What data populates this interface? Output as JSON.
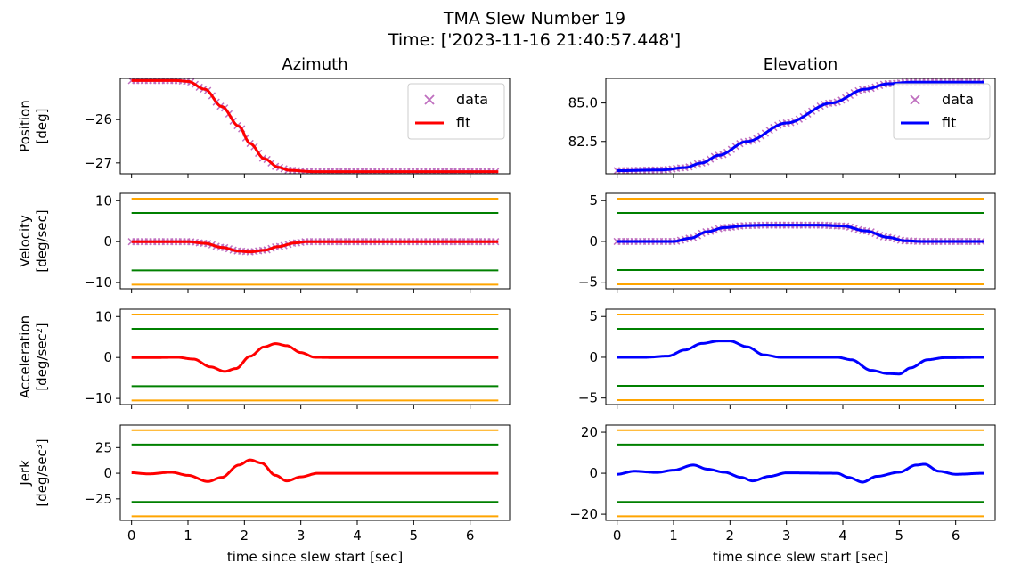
{
  "title": "TMA Slew Number 19",
  "subtitle": "Time: ['2023-11-16 21:40:57.448']",
  "colors": {
    "data": "#bf6fbf",
    "fit_az": "#ff0000",
    "fit_el": "#0000ff",
    "limit_outer": "#ffa500",
    "limit_inner": "#008000"
  },
  "chart_data": [
    {
      "type": "line",
      "panel": "az_position",
      "column_title": "Azimuth",
      "ylabel": [
        "Position",
        "[deg]"
      ],
      "xlim": [
        -0.2,
        6.7
      ],
      "ylim": [
        -27.25,
        -25.05
      ],
      "yticks": [
        -26,
        -27
      ],
      "legend": {
        "placement": "upper-right",
        "entries": [
          "data",
          "fit"
        ]
      },
      "series": [
        {
          "name": "data",
          "style": "x-markers",
          "profile": "az_pos"
        },
        {
          "name": "fit",
          "style": "line",
          "profile": "az_pos"
        }
      ],
      "limits": []
    },
    {
      "type": "line",
      "panel": "el_position",
      "column_title": "Elevation",
      "ylabel": [],
      "xlim": [
        -0.2,
        6.7
      ],
      "ylim": [
        80.4,
        86.6
      ],
      "yticks": [
        85.0,
        82.5
      ],
      "ytick_labels": [
        "85.0",
        "82.5"
      ],
      "legend": {
        "placement": "upper-right",
        "entries": [
          "data",
          "fit"
        ]
      },
      "series": [
        {
          "name": "data",
          "style": "x-markers",
          "profile": "el_pos"
        },
        {
          "name": "fit",
          "style": "line",
          "profile": "el_pos"
        }
      ],
      "limits": []
    },
    {
      "type": "line",
      "panel": "az_velocity",
      "ylabel": [
        "Velocity",
        "[deg/sec]"
      ],
      "xlim": [
        -0.2,
        6.7
      ],
      "ylim": [
        -11.5,
        11.8
      ],
      "yticks": [
        10,
        0,
        -10
      ],
      "series": [
        {
          "style": "x-markers",
          "profile": "az_vel"
        },
        {
          "style": "line",
          "profile": "az_vel"
        }
      ],
      "limits": [
        10.5,
        7.0,
        -7.0,
        -10.5
      ]
    },
    {
      "type": "line",
      "panel": "el_velocity",
      "ylabel": [],
      "xlim": [
        -0.2,
        6.7
      ],
      "ylim": [
        -5.8,
        5.9
      ],
      "yticks": [
        5,
        0,
        -5
      ],
      "series": [
        {
          "style": "x-markers",
          "profile": "el_vel"
        },
        {
          "style": "line",
          "profile": "el_vel"
        }
      ],
      "limits": [
        5.25,
        3.5,
        -3.5,
        -5.25
      ]
    },
    {
      "type": "line",
      "panel": "az_acceleration",
      "ylabel": [
        "Acceleration",
        "[deg/sec²]"
      ],
      "xlim": [
        -0.2,
        6.7
      ],
      "ylim": [
        -11.5,
        11.8
      ],
      "yticks": [
        10,
        0,
        -10
      ],
      "series": [
        {
          "style": "line",
          "profile": "az_acc"
        }
      ],
      "limits": [
        10.5,
        7.0,
        -7.0,
        -10.5
      ]
    },
    {
      "type": "line",
      "panel": "el_acceleration",
      "ylabel": [],
      "xlim": [
        -0.2,
        6.7
      ],
      "ylim": [
        -5.8,
        5.9
      ],
      "yticks": [
        5,
        0,
        -5
      ],
      "series": [
        {
          "style": "line",
          "profile": "el_acc"
        }
      ],
      "limits": [
        5.25,
        3.5,
        -3.5,
        -5.25
      ]
    },
    {
      "type": "line",
      "panel": "az_jerk",
      "ylabel": [
        "Jerk",
        "[deg/sec³]"
      ],
      "xlim": [
        -0.2,
        6.7
      ],
      "ylim": [
        -46,
        47
      ],
      "yticks": [
        25,
        0,
        -25
      ],
      "xticks": [
        0,
        1,
        2,
        3,
        4,
        5,
        6
      ],
      "xlabel": "time since slew start [sec]",
      "series": [
        {
          "style": "line",
          "profile": "az_jerk"
        }
      ],
      "limits": [
        42,
        28,
        -28,
        -42
      ]
    },
    {
      "type": "line",
      "panel": "el_jerk",
      "ylabel": [],
      "xlim": [
        -0.2,
        6.7
      ],
      "ylim": [
        -23,
        23.5
      ],
      "yticks": [
        20,
        0,
        -20
      ],
      "xticks": [
        0,
        1,
        2,
        3,
        4,
        5,
        6
      ],
      "xlabel": "time since slew start [sec]",
      "series": [
        {
          "style": "line",
          "profile": "el_jerk"
        }
      ],
      "limits": [
        21,
        14,
        -14,
        -21
      ]
    }
  ],
  "profiles": {
    "az_pos": [
      [
        0,
        -25.1
      ],
      [
        0.8,
        -25.1
      ],
      [
        1.0,
        -25.12
      ],
      [
        1.3,
        -25.3
      ],
      [
        1.6,
        -25.7
      ],
      [
        1.9,
        -26.15
      ],
      [
        2.1,
        -26.55
      ],
      [
        2.35,
        -26.9
      ],
      [
        2.6,
        -27.1
      ],
      [
        2.8,
        -27.17
      ],
      [
        3.2,
        -27.2
      ],
      [
        6.5,
        -27.2
      ]
    ],
    "el_pos": [
      [
        0,
        80.6
      ],
      [
        0.8,
        80.65
      ],
      [
        1.2,
        80.8
      ],
      [
        1.5,
        81.1
      ],
      [
        1.8,
        81.6
      ],
      [
        2.3,
        82.5
      ],
      [
        3.0,
        83.7
      ],
      [
        3.8,
        85.0
      ],
      [
        4.4,
        85.9
      ],
      [
        4.8,
        86.25
      ],
      [
        5.2,
        86.35
      ],
      [
        6.5,
        86.35
      ]
    ],
    "az_vel": [
      [
        0,
        0
      ],
      [
        1.0,
        0
      ],
      [
        1.3,
        -0.4
      ],
      [
        1.6,
        -1.4
      ],
      [
        1.9,
        -2.3
      ],
      [
        2.1,
        -2.5
      ],
      [
        2.35,
        -2.1
      ],
      [
        2.6,
        -1.2
      ],
      [
        2.9,
        -0.3
      ],
      [
        3.1,
        0
      ],
      [
        6.5,
        0
      ]
    ],
    "el_vel": [
      [
        0,
        0
      ],
      [
        1.0,
        0
      ],
      [
        1.3,
        0.4
      ],
      [
        1.6,
        1.2
      ],
      [
        1.9,
        1.7
      ],
      [
        2.3,
        1.95
      ],
      [
        2.6,
        2.0
      ],
      [
        3.6,
        2.0
      ],
      [
        4.0,
        1.9
      ],
      [
        4.4,
        1.3
      ],
      [
        4.8,
        0.5
      ],
      [
        5.1,
        0.08
      ],
      [
        5.4,
        0
      ],
      [
        6.5,
        0
      ]
    ],
    "az_acc": [
      [
        0,
        0
      ],
      [
        0.5,
        0
      ],
      [
        0.8,
        0.05
      ],
      [
        1.1,
        -0.4
      ],
      [
        1.4,
        -2.3
      ],
      [
        1.65,
        -3.4
      ],
      [
        1.85,
        -2.7
      ],
      [
        2.1,
        0.3
      ],
      [
        2.35,
        2.6
      ],
      [
        2.55,
        3.4
      ],
      [
        2.75,
        2.9
      ],
      [
        3.0,
        1.2
      ],
      [
        3.25,
        0.05
      ],
      [
        3.5,
        0
      ],
      [
        6.5,
        0
      ]
    ],
    "el_acc": [
      [
        0,
        0
      ],
      [
        0.5,
        0
      ],
      [
        0.9,
        0.15
      ],
      [
        1.2,
        0.9
      ],
      [
        1.5,
        1.7
      ],
      [
        1.8,
        2.0
      ],
      [
        2.0,
        2.0
      ],
      [
        2.3,
        1.3
      ],
      [
        2.6,
        0.3
      ],
      [
        2.9,
        0
      ],
      [
        3.9,
        0
      ],
      [
        4.15,
        -0.3
      ],
      [
        4.5,
        -1.6
      ],
      [
        4.8,
        -2.0
      ],
      [
        5.0,
        -2.05
      ],
      [
        5.2,
        -1.3
      ],
      [
        5.5,
        -0.3
      ],
      [
        5.8,
        -0.05
      ],
      [
        6.5,
        0
      ]
    ],
    "az_jerk": [
      [
        0,
        0.5
      ],
      [
        0.3,
        -0.6
      ],
      [
        0.7,
        1.0
      ],
      [
        1.0,
        -2.0
      ],
      [
        1.35,
        -8.0
      ],
      [
        1.6,
        -4.0
      ],
      [
        1.9,
        8.0
      ],
      [
        2.1,
        13.0
      ],
      [
        2.3,
        10.0
      ],
      [
        2.55,
        -2.0
      ],
      [
        2.75,
        -7.5
      ],
      [
        3.0,
        -3.5
      ],
      [
        3.3,
        0
      ],
      [
        6.5,
        0
      ]
    ],
    "el_jerk": [
      [
        0,
        -0.5
      ],
      [
        0.3,
        1.0
      ],
      [
        0.7,
        0.4
      ],
      [
        1.0,
        1.5
      ],
      [
        1.35,
        4.0
      ],
      [
        1.6,
        2.0
      ],
      [
        1.9,
        0.5
      ],
      [
        2.2,
        -2.0
      ],
      [
        2.4,
        -3.7
      ],
      [
        2.7,
        -1.5
      ],
      [
        3.0,
        0.2
      ],
      [
        3.9,
        0
      ],
      [
        4.1,
        -2.0
      ],
      [
        4.35,
        -4.3
      ],
      [
        4.6,
        -1.5
      ],
      [
        5.0,
        0.5
      ],
      [
        5.3,
        4.0
      ],
      [
        5.45,
        4.4
      ],
      [
        5.7,
        1.0
      ],
      [
        6.0,
        -0.5
      ],
      [
        6.5,
        0
      ]
    ]
  }
}
